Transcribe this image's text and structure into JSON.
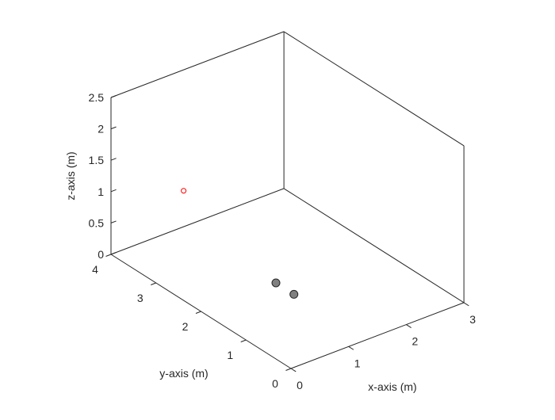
{
  "chart_data": {
    "type": "scatter3d",
    "title": "",
    "xlabel": "x-axis (m)",
    "ylabel": "y-axis (m)",
    "zlabel": "z-axis (m)",
    "xlim": [
      0,
      3
    ],
    "ylim": [
      0,
      4
    ],
    "zlim": [
      0,
      2.5
    ],
    "xticks": [
      0,
      1,
      2,
      3
    ],
    "yticks": [
      0,
      1,
      2,
      3,
      4
    ],
    "zticks": [
      0,
      0.5,
      1,
      1.5,
      2,
      2.5
    ],
    "xtick_labels": [
      "0",
      "1",
      "2",
      "3"
    ],
    "ytick_labels": [
      "0",
      "1",
      "2",
      "3",
      "4"
    ],
    "ztick_labels": [
      "0",
      "0.5",
      "1",
      "1.5",
      "2",
      "2.5"
    ],
    "grid": false,
    "box": true,
    "series": [
      {
        "marker": "filled-circle",
        "color": "#808080",
        "edge_color": "#262626",
        "points": [
          {
            "x": 1.3,
            "y": 2.0,
            "z": 0
          },
          {
            "x": 1.3,
            "y": 1.6,
            "z": 0
          }
        ]
      },
      {
        "marker": "open-circle",
        "color": "#ff0000",
        "points": [
          {
            "x": 0.05,
            "y": 2.45,
            "z": 1.7
          }
        ]
      }
    ]
  }
}
